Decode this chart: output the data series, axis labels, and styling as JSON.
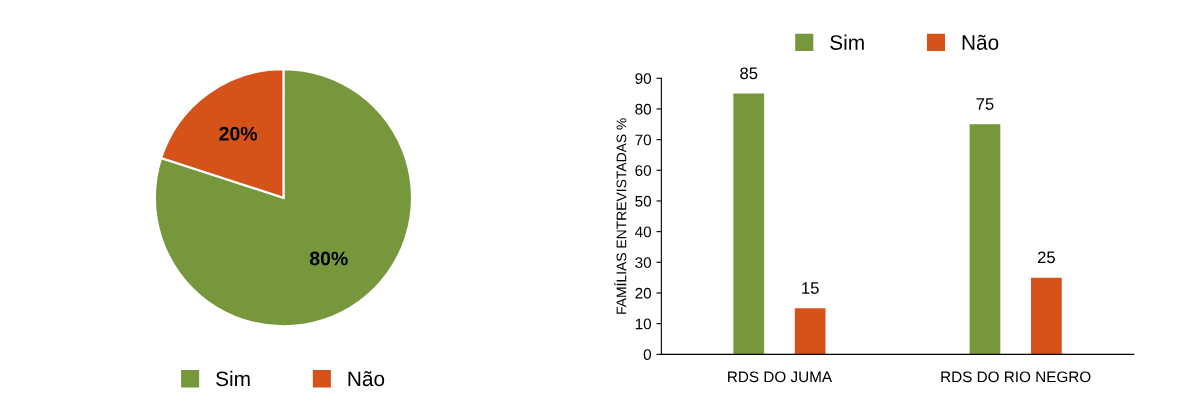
{
  "chart_data": [
    {
      "type": "pie",
      "categories": [
        "Sim",
        "Não"
      ],
      "values": [
        80,
        20
      ],
      "colors": [
        "#77973d",
        "#d55219"
      ],
      "value_labels": [
        "80%",
        "20%"
      ],
      "legend": "bottom"
    },
    {
      "type": "bar",
      "categories": [
        "RDS DO JUMA",
        "RDS DO RIO NEGRO"
      ],
      "ylabel": "FAMÍLIAS ENTREVISTADAS %",
      "series": [
        {
          "name": "Sim",
          "color": "#77973d",
          "values": [
            85,
            75
          ]
        },
        {
          "name": "Não",
          "color": "#d55219",
          "values": [
            15,
            25
          ]
        }
      ],
      "ylim": [
        0,
        90
      ],
      "yticks": [
        0,
        10,
        20,
        30,
        40,
        50,
        60,
        70,
        80,
        90
      ],
      "data_labels": true,
      "legend": "top",
      "grid": false
    }
  ]
}
